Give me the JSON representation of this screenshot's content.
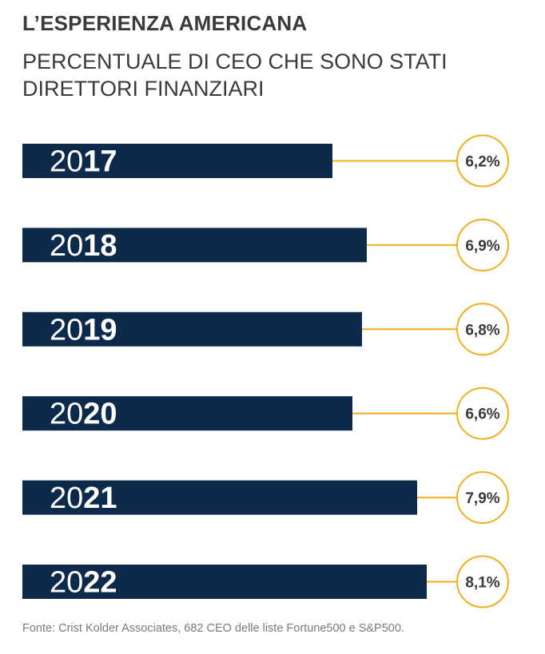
{
  "header": {
    "title": "L’ESPERIENZA AMERICANA",
    "subtitle_line1": "PERCENTUALE DI CEO CHE SONO STATI",
    "subtitle_line2": "DIRETTORI FINANZIARI"
  },
  "chart_data": {
    "type": "bar",
    "orientation": "horizontal",
    "categories": [
      "2017",
      "2018",
      "2019",
      "2020",
      "2021",
      "2022"
    ],
    "category_parts": [
      {
        "light": "20",
        "bold": "17"
      },
      {
        "light": "20",
        "bold": "18"
      },
      {
        "light": "20",
        "bold": "19"
      },
      {
        "light": "20",
        "bold": "20"
      },
      {
        "light": "20",
        "bold": "21"
      },
      {
        "light": "20",
        "bold": "22"
      }
    ],
    "values": [
      6.2,
      6.9,
      6.8,
      6.6,
      7.9,
      8.1
    ],
    "value_labels": [
      "6,2%",
      "6,9%",
      "6,8%",
      "6,6%",
      "7,9%",
      "8,1%"
    ],
    "unit": "%",
    "colors": {
      "bar": "#0d2a4a",
      "connector": "#f2ae1c",
      "circle": "#f2ae1c",
      "label": "#3a3a3a",
      "year": "#ffffff"
    }
  },
  "footer": {
    "source": "Fonte: Crist Kolder Associates, 682 CEO delle liste Fortune500 e S&P500."
  }
}
